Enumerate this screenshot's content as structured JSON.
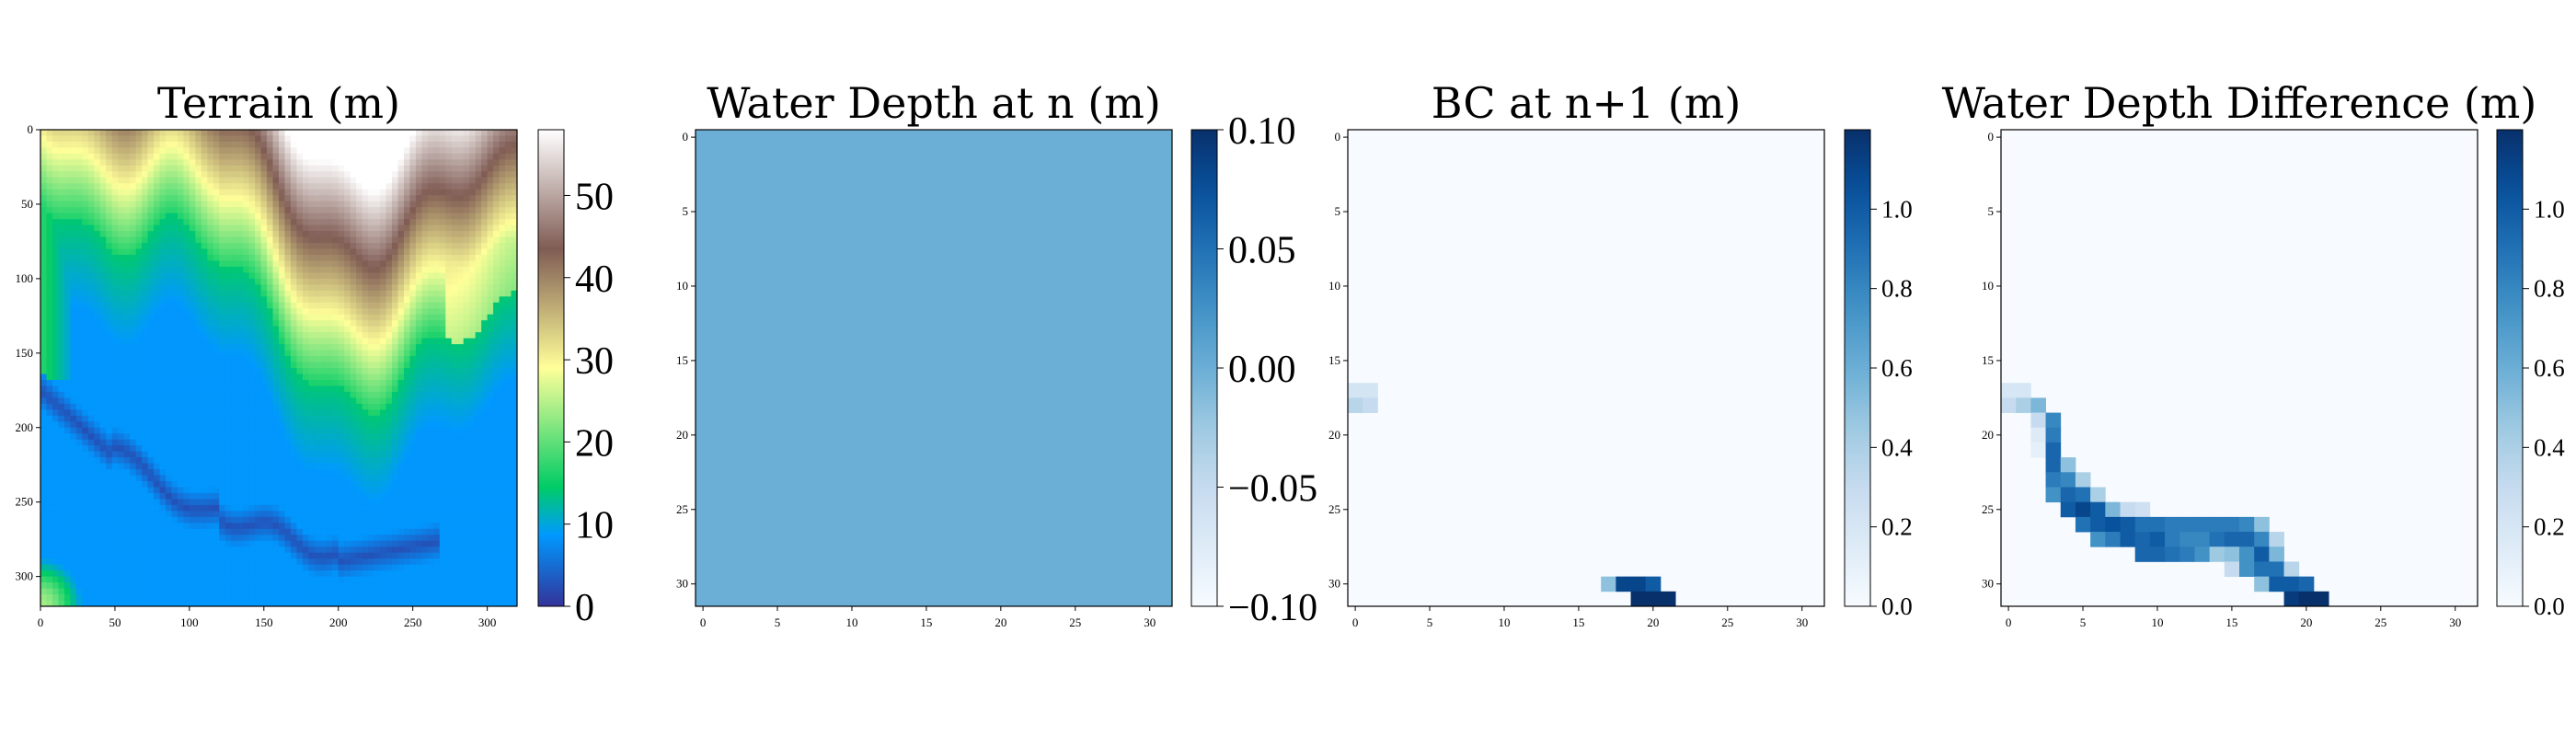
{
  "chart_data": [
    {
      "type": "heatmap",
      "title": "Terrain (m)",
      "colormap": "terrain",
      "colorbar": {
        "vmin": 0,
        "vmax": 58,
        "ticks": [
          "0",
          "10",
          "20",
          "30",
          "40",
          "50"
        ]
      },
      "xticks": [
        "0",
        "50",
        "100",
        "150",
        "200",
        "250",
        "300"
      ],
      "yticks": [
        "0",
        "50",
        "100",
        "150",
        "200",
        "250",
        "300"
      ],
      "grid_size": 320,
      "description_values": {
        "peak_top_center": 58,
        "ridge_top_right": 35,
        "lowland": 9,
        "channel": 3,
        "left_edge": 14
      }
    },
    {
      "type": "heatmap",
      "title": "Water Depth at n (m)",
      "colormap": "Blues",
      "colorbar": {
        "vmin": -0.1,
        "vmax": 0.1,
        "ticks": [
          "−0.10",
          "−0.05",
          "0.00",
          "0.05",
          "0.10"
        ]
      },
      "xticks": [
        "0",
        "5",
        "10",
        "15",
        "20",
        "25",
        "30"
      ],
      "yticks": [
        "0",
        "5",
        "10",
        "15",
        "20",
        "25",
        "30"
      ],
      "grid_size": 32,
      "fill_value": 0.0
    },
    {
      "type": "heatmap",
      "title": "BC at n+1 (m)",
      "colormap": "Blues",
      "colorbar": {
        "vmin": 0,
        "vmax": 1.2,
        "ticks": [
          "0.0",
          "0.2",
          "0.4",
          "0.6",
          "0.8",
          "1.0"
        ]
      },
      "xticks": [
        "0",
        "5",
        "10",
        "15",
        "20",
        "25",
        "30"
      ],
      "yticks": [
        "0",
        "5",
        "10",
        "15",
        "20",
        "25",
        "30"
      ],
      "grid_size": 32,
      "cells": [
        [
          0,
          17,
          0.22
        ],
        [
          1,
          17,
          0.22
        ],
        [
          0,
          18,
          0.35
        ],
        [
          1,
          18,
          0.3
        ],
        [
          17,
          30,
          0.5
        ],
        [
          18,
          30,
          1.1
        ],
        [
          19,
          30,
          1.1
        ],
        [
          20,
          30,
          1.0
        ],
        [
          19,
          31,
          1.2
        ],
        [
          20,
          31,
          1.2
        ],
        [
          21,
          31,
          1.2
        ]
      ]
    },
    {
      "type": "heatmap",
      "title": "Water Depth Difference (m)",
      "colormap": "Blues",
      "colorbar": {
        "vmin": 0,
        "vmax": 1.2,
        "ticks": [
          "0.0",
          "0.2",
          "0.4",
          "0.6",
          "0.8",
          "1.0"
        ]
      },
      "xticks": [
        "0",
        "5",
        "10",
        "15",
        "20",
        "25",
        "30"
      ],
      "yticks": [
        "0",
        "5",
        "10",
        "15",
        "20",
        "25",
        "30"
      ],
      "grid_size": 32,
      "cells": [
        [
          0,
          17,
          0.2
        ],
        [
          1,
          17,
          0.2
        ],
        [
          0,
          18,
          0.3
        ],
        [
          1,
          18,
          0.4
        ],
        [
          2,
          18,
          0.55
        ],
        [
          2,
          19,
          0.3
        ],
        [
          3,
          19,
          0.8
        ],
        [
          2,
          20,
          0.15
        ],
        [
          3,
          20,
          0.85
        ],
        [
          2,
          21,
          0.1
        ],
        [
          3,
          21,
          0.95
        ],
        [
          3,
          22,
          0.95
        ],
        [
          4,
          22,
          0.5
        ],
        [
          3,
          23,
          0.85
        ],
        [
          4,
          23,
          0.8
        ],
        [
          5,
          23,
          0.4
        ],
        [
          3,
          24,
          0.75
        ],
        [
          4,
          24,
          0.95
        ],
        [
          5,
          24,
          0.9
        ],
        [
          6,
          24,
          0.4
        ],
        [
          4,
          25,
          1.0
        ],
        [
          5,
          25,
          1.1
        ],
        [
          6,
          25,
          1.0
        ],
        [
          7,
          25,
          0.55
        ],
        [
          8,
          25,
          0.3
        ],
        [
          9,
          25,
          0.25
        ],
        [
          5,
          26,
          0.9
        ],
        [
          6,
          26,
          1.0
        ],
        [
          7,
          26,
          1.05
        ],
        [
          8,
          26,
          1.0
        ],
        [
          9,
          26,
          0.9
        ],
        [
          10,
          26,
          0.9
        ],
        [
          11,
          26,
          0.85
        ],
        [
          12,
          26,
          0.85
        ],
        [
          13,
          26,
          0.85
        ],
        [
          14,
          26,
          0.85
        ],
        [
          15,
          26,
          0.85
        ],
        [
          16,
          26,
          0.8
        ],
        [
          17,
          26,
          0.5
        ],
        [
          6,
          27,
          0.75
        ],
        [
          7,
          27,
          0.85
        ],
        [
          8,
          27,
          1.0
        ],
        [
          9,
          27,
          0.95
        ],
        [
          10,
          27,
          1.0
        ],
        [
          11,
          27,
          0.85
        ],
        [
          12,
          27,
          0.8
        ],
        [
          13,
          27,
          0.8
        ],
        [
          14,
          27,
          0.9
        ],
        [
          15,
          27,
          0.95
        ],
        [
          16,
          27,
          0.95
        ],
        [
          17,
          27,
          0.8
        ],
        [
          18,
          27,
          0.35
        ],
        [
          9,
          28,
          0.95
        ],
        [
          10,
          28,
          0.95
        ],
        [
          11,
          28,
          0.9
        ],
        [
          12,
          28,
          0.85
        ],
        [
          13,
          28,
          0.75
        ],
        [
          14,
          28,
          0.45
        ],
        [
          15,
          28,
          0.5
        ],
        [
          16,
          28,
          0.75
        ],
        [
          17,
          28,
          1.0
        ],
        [
          18,
          28,
          0.55
        ],
        [
          15,
          29,
          0.3
        ],
        [
          16,
          29,
          0.75
        ],
        [
          17,
          29,
          0.9
        ],
        [
          18,
          29,
          0.9
        ],
        [
          19,
          29,
          0.35
        ],
        [
          17,
          30,
          0.5
        ],
        [
          18,
          30,
          1.0
        ],
        [
          19,
          30,
          1.0
        ],
        [
          20,
          30,
          0.95
        ],
        [
          19,
          31,
          1.15
        ],
        [
          20,
          31,
          1.2
        ],
        [
          21,
          31,
          1.2
        ]
      ]
    }
  ]
}
